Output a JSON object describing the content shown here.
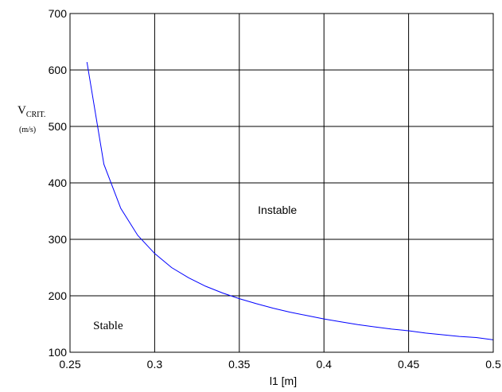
{
  "chart_data": {
    "type": "line",
    "title": "",
    "xlabel": "l1 [m]",
    "ylabel": "V",
    "ylabel_subscript": "CRIT.",
    "ylabel_unit": "(m/s)",
    "xlim": [
      0.25,
      0.5
    ],
    "ylim": [
      100,
      700
    ],
    "x_ticks": [
      0.25,
      0.3,
      0.35,
      0.4,
      0.45,
      0.5
    ],
    "x_tick_labels": [
      "0.25",
      "0.3",
      "0.35",
      "0.4",
      "0.45",
      "0.5"
    ],
    "y_ticks": [
      100,
      200,
      300,
      400,
      500,
      600,
      700
    ],
    "y_tick_labels": [
      "100",
      "200",
      "300",
      "400",
      "500",
      "600",
      "700"
    ],
    "grid": true,
    "series": [
      {
        "color": "#0000ff",
        "x": [
          0.26,
          0.27,
          0.28,
          0.29,
          0.3,
          0.31,
          0.32,
          0.33,
          0.34,
          0.35,
          0.36,
          0.37,
          0.38,
          0.39,
          0.4,
          0.41,
          0.42,
          0.43,
          0.44,
          0.45,
          0.46,
          0.47,
          0.48,
          0.49,
          0.5
        ],
        "y": [
          614,
          433,
          355,
          307,
          275,
          250,
          232,
          217,
          205,
          195,
          186,
          178,
          171,
          165,
          159,
          154,
          149,
          145,
          141,
          138,
          134,
          131,
          128,
          126,
          122
        ]
      }
    ],
    "annotations": [
      {
        "text": "Instable",
        "x": 0.3725,
        "y": 352
      },
      {
        "text": "Stable",
        "x": 0.2725,
        "y": 148
      }
    ]
  }
}
